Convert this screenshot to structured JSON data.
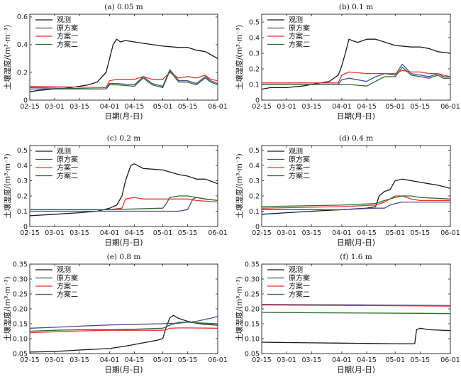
{
  "figure": {
    "xlabel": "日期(月-日)",
    "ylabel": "土壤湿度/(m³·m⁻³)"
  },
  "legend": [
    {
      "name": "观测",
      "color": "#1a1a1a"
    },
    {
      "name": "原方案",
      "color": "#4a4a9e"
    },
    {
      "name": "方案一",
      "color": "#e8332a"
    },
    {
      "name": "方案二",
      "color": "#2e6b2e"
    }
  ],
  "chart_data": [
    {
      "type": "line",
      "title": "(a) 0.05 m",
      "x_ticks": [
        "02-15",
        "03-01",
        "03-15",
        "04-01",
        "04-15",
        "05-01",
        "05-15",
        "06-01"
      ],
      "y_ticks": [
        "0",
        "0.2",
        "0.4",
        "0.6"
      ],
      "ylim": [
        0,
        0.62
      ],
      "series": [
        {
          "name": "观测",
          "x": [
            "02-15",
            "02-20",
            "03-01",
            "03-10",
            "03-15",
            "03-20",
            "03-25",
            "03-30",
            "04-01",
            "04-03",
            "04-05",
            "04-07",
            "04-10",
            "04-15",
            "04-20",
            "05-01",
            "05-10",
            "05-15",
            "05-20",
            "05-25",
            "06-01"
          ],
          "values": [
            0.06,
            0.07,
            0.08,
            0.09,
            0.1,
            0.11,
            0.13,
            0.2,
            0.3,
            0.4,
            0.44,
            0.42,
            0.43,
            0.42,
            0.41,
            0.39,
            0.38,
            0.38,
            0.36,
            0.35,
            0.3
          ]
        },
        {
          "name": "原方案",
          "x": [
            "02-15",
            "03-30",
            "04-01",
            "04-05",
            "04-15",
            "04-20",
            "04-25",
            "05-01",
            "05-05",
            "05-10",
            "05-15",
            "05-20",
            "05-25",
            "05-28",
            "06-01"
          ],
          "values": [
            0.08,
            0.08,
            0.12,
            0.12,
            0.11,
            0.17,
            0.12,
            0.1,
            0.22,
            0.14,
            0.14,
            0.12,
            0.17,
            0.14,
            0.12
          ]
        },
        {
          "name": "方案一",
          "x": [
            "02-15",
            "03-30",
            "04-01",
            "04-05",
            "04-15",
            "04-20",
            "04-25",
            "05-01",
            "05-05",
            "05-10",
            "05-15",
            "05-20",
            "05-25",
            "05-28",
            "06-01"
          ],
          "values": [
            0.1,
            0.09,
            0.14,
            0.15,
            0.15,
            0.17,
            0.15,
            0.15,
            0.2,
            0.16,
            0.17,
            0.16,
            0.18,
            0.15,
            0.14
          ]
        },
        {
          "name": "方案二",
          "x": [
            "02-15",
            "03-30",
            "04-01",
            "04-05",
            "04-15",
            "04-20",
            "04-25",
            "05-01",
            "05-05",
            "05-10",
            "05-15",
            "05-20",
            "05-25",
            "05-28",
            "06-01"
          ],
          "values": [
            0.09,
            0.08,
            0.11,
            0.11,
            0.1,
            0.16,
            0.11,
            0.09,
            0.21,
            0.13,
            0.13,
            0.11,
            0.16,
            0.13,
            0.11
          ]
        }
      ]
    },
    {
      "type": "line",
      "title": "(b) 0.1 m",
      "x_ticks": [
        "02-15",
        "03-01",
        "03-15",
        "04-01",
        "04-15",
        "05-01",
        "05-15",
        "06-01"
      ],
      "y_ticks": [
        "0",
        "0.1",
        "0.2",
        "0.3",
        "0.4",
        "0.5"
      ],
      "ylim": [
        0,
        0.55
      ],
      "series": [
        {
          "name": "观测",
          "x": [
            "02-15",
            "02-20",
            "03-01",
            "03-10",
            "03-15",
            "03-20",
            "03-25",
            "03-30",
            "04-01",
            "04-03",
            "04-05",
            "04-07",
            "04-10",
            "04-15",
            "04-20",
            "05-01",
            "05-10",
            "05-15",
            "05-20",
            "05-25",
            "06-01"
          ],
          "values": [
            0.07,
            0.08,
            0.08,
            0.09,
            0.1,
            0.11,
            0.12,
            0.16,
            0.22,
            0.3,
            0.39,
            0.38,
            0.37,
            0.39,
            0.39,
            0.35,
            0.34,
            0.34,
            0.33,
            0.31,
            0.3
          ]
        },
        {
          "name": "原方案",
          "x": [
            "02-15",
            "03-30",
            "04-01",
            "04-05",
            "04-15",
            "04-20",
            "04-25",
            "05-01",
            "05-05",
            "05-10",
            "05-15",
            "05-20",
            "05-25",
            "05-28",
            "06-01"
          ],
          "values": [
            0.1,
            0.1,
            0.13,
            0.14,
            0.12,
            0.15,
            0.17,
            0.16,
            0.23,
            0.17,
            0.16,
            0.15,
            0.17,
            0.15,
            0.15
          ]
        },
        {
          "name": "方案一",
          "x": [
            "02-15",
            "03-30",
            "04-01",
            "04-05",
            "04-15",
            "04-20",
            "04-25",
            "05-01",
            "05-05",
            "05-10",
            "05-15",
            "05-20",
            "05-25",
            "05-28",
            "06-01"
          ],
          "values": [
            0.11,
            0.11,
            0.16,
            0.18,
            0.17,
            0.17,
            0.17,
            0.17,
            0.19,
            0.18,
            0.18,
            0.17,
            0.17,
            0.16,
            0.15
          ]
        },
        {
          "name": "方案二",
          "x": [
            "02-15",
            "03-30",
            "04-01",
            "04-05",
            "04-15",
            "04-20",
            "04-25",
            "05-01",
            "05-05",
            "05-10",
            "05-15",
            "05-20",
            "05-25",
            "05-28",
            "06-01"
          ],
          "values": [
            0.1,
            0.1,
            0.1,
            0.1,
            0.09,
            0.12,
            0.15,
            0.15,
            0.21,
            0.16,
            0.15,
            0.14,
            0.16,
            0.14,
            0.14
          ]
        }
      ]
    },
    {
      "type": "line",
      "title": "(c) 0.2 m",
      "x_ticks": [
        "02-15",
        "03-01",
        "03-15",
        "04-01",
        "04-15",
        "05-01",
        "05-15",
        "06-01"
      ],
      "y_ticks": [
        "0",
        "0.1",
        "0.2",
        "0.3",
        "0.4",
        "0.5"
      ],
      "ylim": [
        0,
        0.53
      ],
      "series": [
        {
          "name": "观测",
          "x": [
            "02-15",
            "03-01",
            "03-15",
            "03-25",
            "04-01",
            "04-05",
            "04-08",
            "04-10",
            "04-13",
            "04-15",
            "04-20",
            "05-01",
            "05-10",
            "05-15",
            "05-20",
            "05-25",
            "06-01"
          ],
          "values": [
            0.07,
            0.08,
            0.09,
            0.1,
            0.12,
            0.14,
            0.2,
            0.3,
            0.4,
            0.41,
            0.38,
            0.37,
            0.34,
            0.33,
            0.31,
            0.31,
            0.28
          ]
        },
        {
          "name": "原方案",
          "x": [
            "02-15",
            "04-01",
            "04-15",
            "05-01",
            "05-10",
            "05-15",
            "05-18",
            "05-20",
            "05-25",
            "06-01"
          ],
          "values": [
            0.1,
            0.1,
            0.1,
            0.1,
            0.1,
            0.11,
            0.18,
            0.19,
            0.18,
            0.17
          ]
        },
        {
          "name": "方案一",
          "x": [
            "02-15",
            "04-01",
            "04-08",
            "04-10",
            "04-15",
            "04-20",
            "05-01",
            "05-10",
            "05-15",
            "05-20",
            "06-01"
          ],
          "values": [
            0.11,
            0.11,
            0.12,
            0.18,
            0.19,
            0.18,
            0.18,
            0.18,
            0.18,
            0.17,
            0.16
          ]
        },
        {
          "name": "方案二",
          "x": [
            "02-15",
            "04-01",
            "05-01",
            "05-03",
            "05-05",
            "05-10",
            "05-15",
            "05-20",
            "05-25",
            "06-01"
          ],
          "values": [
            0.11,
            0.11,
            0.12,
            0.15,
            0.19,
            0.2,
            0.2,
            0.19,
            0.18,
            0.17
          ]
        }
      ]
    },
    {
      "type": "line",
      "title": "(d) 0.4 m",
      "x_ticks": [
        "02-15",
        "03-01",
        "03-15",
        "04-01",
        "04-15",
        "05-01",
        "05-15",
        "06-01"
      ],
      "y_ticks": [
        "0",
        "0.1",
        "0.2",
        "0.3",
        "0.4",
        "0.5"
      ],
      "ylim": [
        0,
        0.53
      ],
      "series": [
        {
          "name": "观测",
          "x": [
            "02-15",
            "03-01",
            "03-15",
            "04-01",
            "04-15",
            "04-20",
            "04-22",
            "04-25",
            "04-28",
            "05-01",
            "05-05",
            "05-10",
            "05-15",
            "05-20",
            "05-25",
            "06-01"
          ],
          "values": [
            0.08,
            0.09,
            0.1,
            0.11,
            0.12,
            0.13,
            0.2,
            0.23,
            0.24,
            0.3,
            0.31,
            0.3,
            0.29,
            0.28,
            0.27,
            0.25
          ]
        },
        {
          "name": "原方案",
          "x": [
            "02-15",
            "04-01",
            "04-20",
            "04-25",
            "04-28",
            "05-01",
            "05-05",
            "05-10",
            "05-15",
            "06-01"
          ],
          "values": [
            0.11,
            0.11,
            0.12,
            0.12,
            0.14,
            0.15,
            0.16,
            0.16,
            0.16,
            0.16
          ]
        },
        {
          "name": "方案一",
          "x": [
            "02-15",
            "04-01",
            "04-20",
            "04-25",
            "05-01",
            "05-05",
            "05-10",
            "05-15",
            "06-01"
          ],
          "values": [
            0.12,
            0.13,
            0.14,
            0.16,
            0.2,
            0.2,
            0.18,
            0.17,
            0.17
          ]
        },
        {
          "name": "方案二",
          "x": [
            "02-15",
            "04-01",
            "04-20",
            "04-25",
            "05-01",
            "05-05",
            "05-10",
            "05-15",
            "06-01"
          ],
          "values": [
            0.13,
            0.14,
            0.15,
            0.17,
            0.19,
            0.2,
            0.2,
            0.19,
            0.18
          ]
        }
      ]
    },
    {
      "type": "line",
      "title": "(e) 0.8 m",
      "x_ticks": [
        "02-15",
        "03-01",
        "03-15",
        "04-01",
        "04-15",
        "05-01",
        "05-15",
        "06-01"
      ],
      "y_ticks": [
        "0.05",
        "0.10",
        "0.15",
        "0.20",
        "0.25",
        "0.30",
        "0.35"
      ],
      "ylim": [
        0.05,
        0.35
      ],
      "series": [
        {
          "name": "观测",
          "x": [
            "02-15",
            "03-01",
            "03-15",
            "04-01",
            "04-10",
            "04-20",
            "04-28",
            "05-01",
            "05-03",
            "05-05",
            "05-07",
            "05-10",
            "05-15",
            "05-20",
            "05-25",
            "06-01"
          ],
          "values": [
            0.055,
            0.057,
            0.062,
            0.067,
            0.075,
            0.086,
            0.095,
            0.1,
            0.14,
            0.17,
            0.178,
            0.168,
            0.158,
            0.152,
            0.148,
            0.145
          ]
        },
        {
          "name": "原方案",
          "x": [
            "02-15",
            "03-01",
            "03-15",
            "04-01",
            "04-15",
            "05-01",
            "05-10",
            "05-15",
            "05-20",
            "05-25",
            "05-28",
            "06-01"
          ],
          "values": [
            0.135,
            0.138,
            0.142,
            0.146,
            0.148,
            0.15,
            0.152,
            0.155,
            0.158,
            0.165,
            0.168,
            0.175
          ]
        },
        {
          "name": "方案一",
          "x": [
            "02-15",
            "03-01",
            "03-15",
            "04-01",
            "04-15",
            "05-01",
            "05-03",
            "05-05",
            "05-10",
            "05-15",
            "06-01"
          ],
          "values": [
            0.12,
            0.123,
            0.126,
            0.128,
            0.128,
            0.128,
            0.13,
            0.135,
            0.136,
            0.136,
            0.135
          ]
        },
        {
          "name": "方案二",
          "x": [
            "02-15",
            "03-01",
            "03-15",
            "04-01",
            "04-15",
            "05-01",
            "05-05",
            "05-10",
            "05-15",
            "05-20",
            "06-01"
          ],
          "values": [
            0.125,
            0.128,
            0.13,
            0.13,
            0.132,
            0.135,
            0.145,
            0.155,
            0.155,
            0.153,
            0.15
          ]
        }
      ]
    },
    {
      "type": "line",
      "title": "(f) 1.6 m",
      "x_ticks": [
        "02-15",
        "03-01",
        "03-15",
        "04-01",
        "04-15",
        "05-01",
        "05-15",
        "06-01"
      ],
      "y_ticks": [
        "0.05",
        "0.10",
        "0.15",
        "0.20",
        "0.25",
        "0.30",
        "0.35"
      ],
      "ylim": [
        0.05,
        0.35
      ],
      "series": [
        {
          "name": "观测",
          "x": [
            "02-15",
            "03-01",
            "03-15",
            "04-01",
            "04-15",
            "05-01",
            "05-12",
            "05-13",
            "05-15",
            "05-20",
            "06-01"
          ],
          "values": [
            0.088,
            0.087,
            0.086,
            0.085,
            0.084,
            0.083,
            0.083,
            0.13,
            0.135,
            0.13,
            0.127
          ]
        },
        {
          "name": "原方案",
          "x": [
            "02-15",
            "03-15",
            "04-15",
            "05-15",
            "06-01"
          ],
          "values": [
            0.215,
            0.214,
            0.213,
            0.212,
            0.211
          ]
        },
        {
          "name": "方案一",
          "x": [
            "02-15",
            "03-15",
            "04-15",
            "05-15",
            "06-01"
          ],
          "values": [
            0.213,
            0.212,
            0.211,
            0.21,
            0.209
          ]
        },
        {
          "name": "方案二",
          "x": [
            "02-15",
            "03-15",
            "04-15",
            "05-15",
            "06-01"
          ],
          "values": [
            0.188,
            0.187,
            0.186,
            0.185,
            0.184
          ]
        }
      ]
    }
  ]
}
